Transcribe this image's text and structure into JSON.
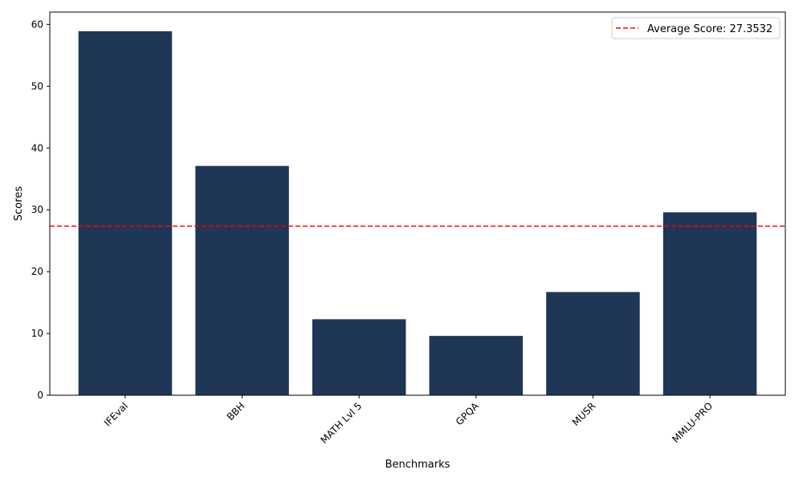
{
  "chart_data": {
    "type": "bar",
    "categories": [
      "IFEval",
      "BBH",
      "MATH Lvl 5",
      "GPQA",
      "MUSR",
      "MMLU-PRO"
    ],
    "values": [
      58.9,
      37.1,
      12.3,
      9.6,
      16.7,
      29.6
    ],
    "xlabel": "Benchmarks",
    "ylabel": "Scores",
    "ylim": [
      0,
      62
    ],
    "yticks": [
      0,
      10,
      20,
      30,
      40,
      50,
      60
    ],
    "average_line": {
      "value": 27.3532,
      "label": "Average Score: 27.3532",
      "color": "#ff0000",
      "style": "dashed"
    },
    "bar_color": "#1f3657",
    "legend_position": "top-right",
    "grid": false
  }
}
